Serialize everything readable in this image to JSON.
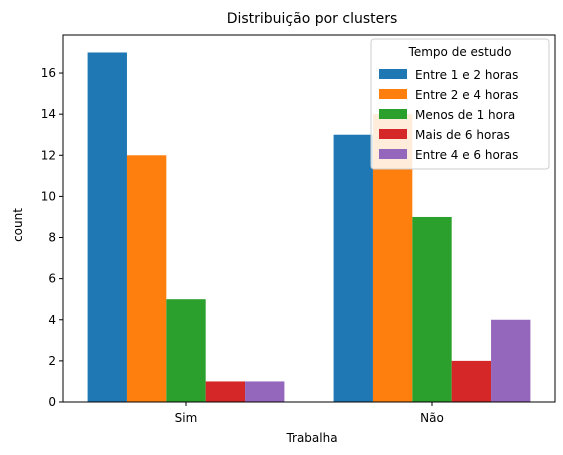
{
  "chart_data": {
    "type": "bar",
    "title": "Distribuição por clusters",
    "xlabel": "Trabalha",
    "ylabel": "count",
    "categories": [
      "Sim",
      "Não"
    ],
    "ylim": [
      0,
      17.85
    ],
    "yticks": [
      0,
      2,
      4,
      6,
      8,
      10,
      12,
      14,
      16
    ],
    "grid": false,
    "legend": {
      "title": "Tempo de estudo",
      "placement": "top-right"
    },
    "series": [
      {
        "name": "Entre 1 e 2 horas",
        "color": "#1f77b4",
        "values": [
          17,
          13
        ]
      },
      {
        "name": "Entre 2 e 4 horas",
        "color": "#ff7f0e",
        "values": [
          12,
          14
        ]
      },
      {
        "name": "Menos de 1 hora",
        "color": "#2ca02c",
        "values": [
          5,
          9
        ]
      },
      {
        "name": "Mais de 6 horas",
        "color": "#d62728",
        "values": [
          1,
          2
        ]
      },
      {
        "name": "Entre 4 e 6 horas",
        "color": "#9467bd",
        "values": [
          1,
          4
        ]
      }
    ]
  }
}
